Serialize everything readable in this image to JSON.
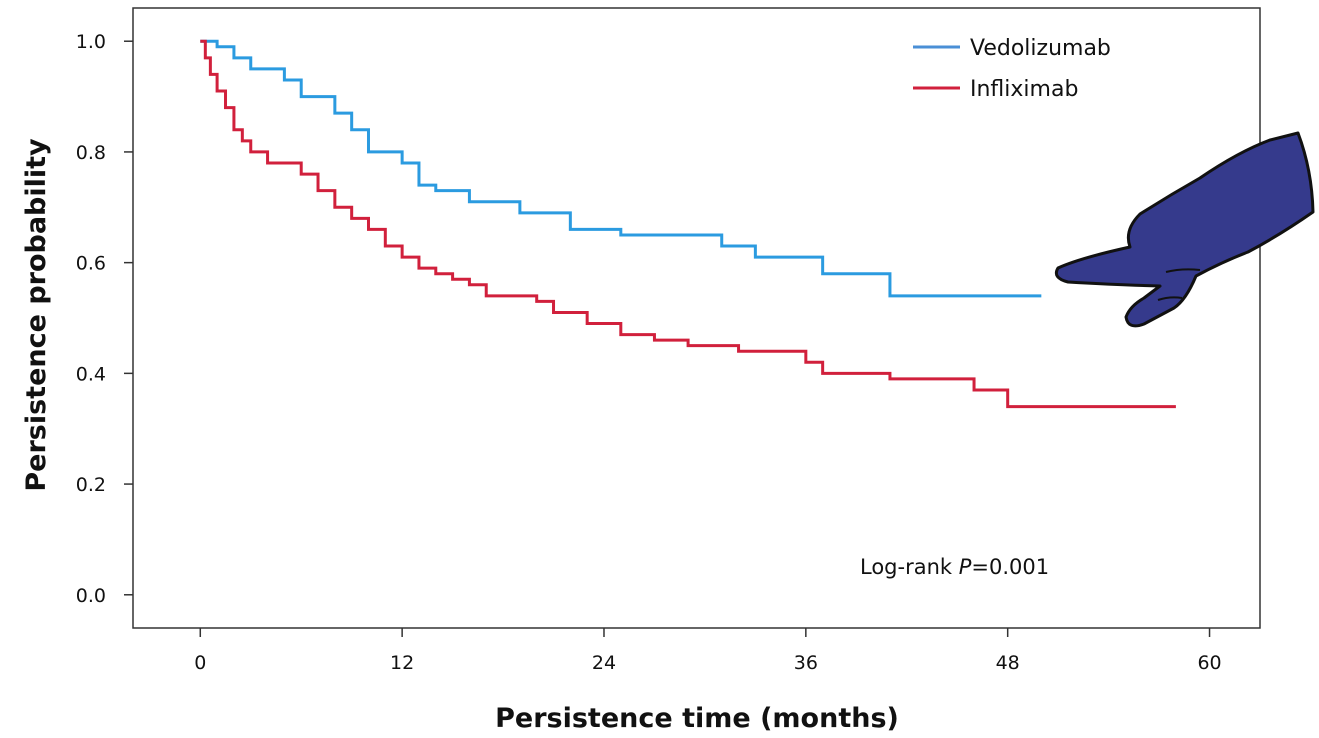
{
  "chart_data": {
    "type": "line",
    "xlabel": "Persistence time (months)",
    "ylabel": "Persistence probability",
    "xlim": [
      -4,
      63
    ],
    "ylim": [
      -0.06,
      1.06
    ],
    "xticks": [
      "0",
      "12",
      "24",
      "36",
      "48",
      "60"
    ],
    "yticks": [
      "0.0",
      "0.2",
      "0.4",
      "0.6",
      "0.8",
      "1.0"
    ],
    "annotation": {
      "prefix": "Log-rank ",
      "italic": "P",
      "suffix": "=0.001"
    },
    "legend_position": "top-right",
    "series": [
      {
        "name": "Vedolizumab",
        "color": "#2b9be0",
        "x": [
          0,
          1,
          2,
          3,
          5,
          6,
          8,
          9,
          10,
          12,
          13,
          14,
          16,
          19,
          22,
          25,
          31,
          33,
          37,
          41,
          50
        ],
        "y": [
          1.0,
          0.99,
          0.97,
          0.95,
          0.93,
          0.9,
          0.87,
          0.84,
          0.8,
          0.78,
          0.74,
          0.73,
          0.71,
          0.69,
          0.66,
          0.65,
          0.63,
          0.61,
          0.58,
          0.54,
          0.54
        ]
      },
      {
        "name": "Infliximab",
        "color": "#d1203c",
        "x": [
          0,
          0.3,
          0.6,
          1,
          1.5,
          2,
          2.5,
          3,
          4,
          6,
          7,
          8,
          9,
          10,
          11,
          12,
          13,
          14,
          15,
          16,
          17,
          18,
          20,
          21,
          23,
          25,
          27,
          29,
          32,
          36,
          37,
          41,
          46,
          48,
          58
        ],
        "y": [
          1.0,
          0.97,
          0.94,
          0.91,
          0.88,
          0.84,
          0.82,
          0.8,
          0.78,
          0.76,
          0.73,
          0.7,
          0.68,
          0.66,
          0.63,
          0.61,
          0.59,
          0.58,
          0.57,
          0.56,
          0.54,
          0.54,
          0.53,
          0.51,
          0.49,
          0.47,
          0.46,
          0.45,
          0.44,
          0.42,
          0.4,
          0.39,
          0.37,
          0.34,
          0.34
        ]
      }
    ]
  },
  "icons": {
    "pointer": "pointing-hand-icon",
    "pointer_color": "#353a8c"
  }
}
